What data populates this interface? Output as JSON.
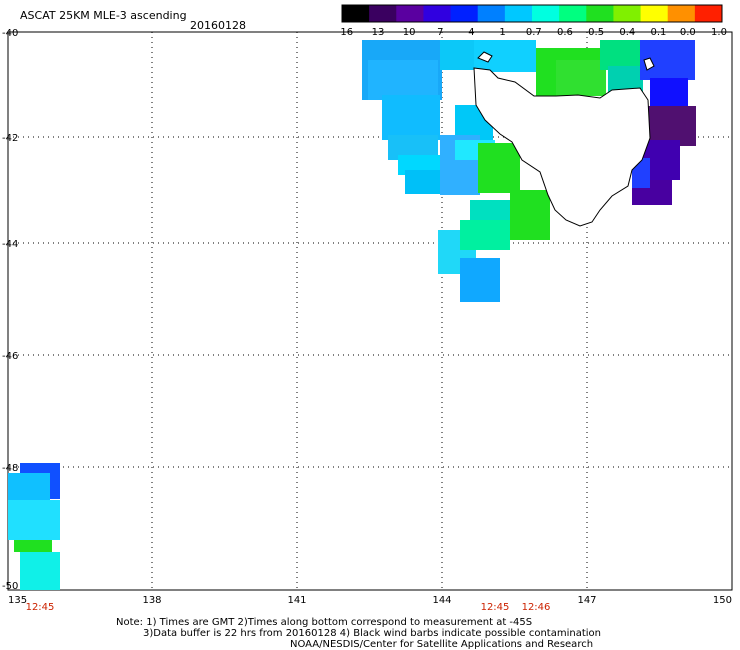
{
  "title": "ASCAT 25KM MLE-3 ascending",
  "date": "20160128",
  "colorbar": {
    "labels": [
      "-16",
      "-13",
      "-10",
      "-7",
      "-4",
      "-1",
      "-0.7",
      "-0.6",
      "-0.5",
      "-0.4",
      "-0.1",
      "0.0",
      "1.0"
    ],
    "colors": [
      "#000000",
      "#3a0060",
      "#5a00a0",
      "#3000e0",
      "#0020ff",
      "#0080ff",
      "#00c8ff",
      "#00ffe0",
      "#00ff80",
      "#20e020",
      "#80f000",
      "#ffff00",
      "#ff9000",
      "#ff2000"
    ]
  },
  "y_ticks": [
    "-40",
    "-42",
    "-44",
    "-46",
    "-48",
    "-50"
  ],
  "x_ticks": [
    "135",
    "138",
    "141",
    "144",
    "147",
    "150"
  ],
  "times": [
    "12:45",
    "12:45",
    "12:46"
  ],
  "notes": [
    "Note: 1) Times are GMT 2)Times along bottom correspond to measurement at -45S",
    "3)Data buffer is 22 hrs from 20160128 4) Black wind barbs indicate possible contamination",
    "NOAA/NESDIS/Center for Satellite Applications and Research"
  ]
}
